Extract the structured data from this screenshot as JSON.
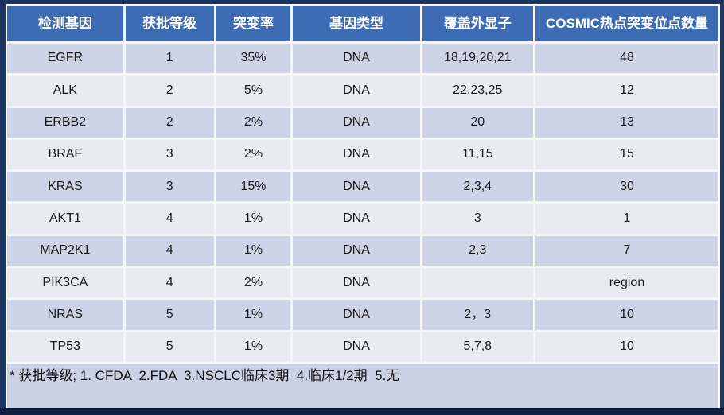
{
  "table": {
    "header": [
      "检测基因",
      "获批等级",
      "突变率",
      "基因类型",
      "覆盖外显子",
      "COSMIC热点突变位点数量"
    ],
    "rows": [
      {
        "gene": "EGFR",
        "level": "1",
        "rate": "35%",
        "type": "DNA",
        "exons": "18,19,20,21",
        "cosmic": "48"
      },
      {
        "gene": "ALK",
        "level": "2",
        "rate": "5%",
        "type": "DNA",
        "exons": "22,23,25",
        "cosmic": "12"
      },
      {
        "gene": "ERBB2",
        "level": "2",
        "rate": "2%",
        "type": "DNA",
        "exons": "20",
        "cosmic": "13"
      },
      {
        "gene": "BRAF",
        "level": "3",
        "rate": "2%",
        "type": "DNA",
        "exons": "11,15",
        "cosmic": "15"
      },
      {
        "gene": "KRAS",
        "level": "3",
        "rate": "15%",
        "type": "DNA",
        "exons": "2,3,4",
        "cosmic": "30"
      },
      {
        "gene": "AKT1",
        "level": "4",
        "rate": "1%",
        "type": "DNA",
        "exons": "3",
        "cosmic": "1"
      },
      {
        "gene": "MAP2K1",
        "level": "4",
        "rate": "1%",
        "type": "DNA",
        "exons": "2,3",
        "cosmic": "7"
      },
      {
        "gene": "PIK3CA",
        "level": "4",
        "rate": "2%",
        "type": "DNA",
        "exons": "",
        "cosmic": "region"
      },
      {
        "gene": "NRAS",
        "level": "5",
        "rate": "1%",
        "type": "DNA",
        "exons": "2，3",
        "cosmic": "10"
      },
      {
        "gene": "TP53",
        "level": "5",
        "rate": "1%",
        "type": "DNA",
        "exons": "5,7,8",
        "cosmic": "10"
      }
    ],
    "footnote": "* 获批等级; 1. CFDA  2.FDA  3.NSCLC临床3期  4.临床1/2期  5.无"
  },
  "colors": {
    "frame": "#1B3460",
    "bottom_bar": "#0F2140",
    "header_bg": "#3D6BB4",
    "header_text": "#FFFFFF",
    "row_odd_bg": "#CED4E7",
    "row_even_bg": "#E9EBF3",
    "footer_bg": "#CBD1E4",
    "grid": "#F4F6FA",
    "cell_text": "#1A1A1A"
  }
}
